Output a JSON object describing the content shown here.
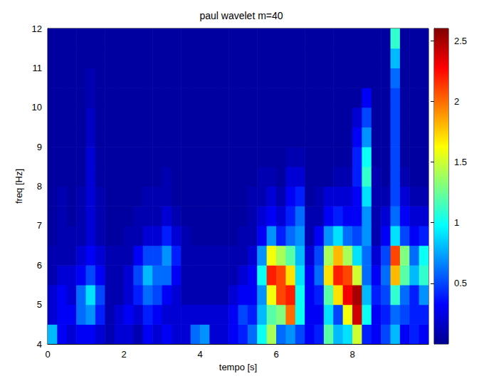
{
  "chart_data": {
    "type": "heatmap",
    "title": "paul wavelet m=40",
    "xlabel": "tempo [s]",
    "ylabel": "freq [Hz]",
    "xlim": [
      0,
      10
    ],
    "xticks": [
      0,
      2,
      4,
      6,
      8
    ],
    "ylim": [
      4,
      12
    ],
    "yticks": [
      4,
      5,
      6,
      7,
      8,
      9,
      10,
      11,
      12
    ],
    "x": [
      0.125,
      0.375,
      0.625,
      0.875,
      1.125,
      1.375,
      1.625,
      1.875,
      2.125,
      2.375,
      2.625,
      2.875,
      3.125,
      3.375,
      3.625,
      3.875,
      4.125,
      4.375,
      4.625,
      4.875,
      5.125,
      5.375,
      5.625,
      5.875,
      6.125,
      6.375,
      6.625,
      6.875,
      7.125,
      7.375,
      7.625,
      7.875,
      8.125,
      8.375,
      8.625,
      8.875,
      9.125,
      9.375,
      9.625,
      9.875
    ],
    "y": [
      4.25,
      4.75,
      5.25,
      5.75,
      6.25,
      6.75,
      7.25,
      7.75,
      8.25,
      8.75,
      9.25,
      9.75,
      10.25,
      10.75,
      11.25,
      11.75
    ],
    "values": [
      [
        0.8,
        0.3,
        0.2,
        0.3,
        0.3,
        0.2,
        0.1,
        0.2,
        0.2,
        0.1,
        0.3,
        0.2,
        0.3,
        0.2,
        0.2,
        0.6,
        0.7,
        0.2,
        0.2,
        0.3,
        0.4,
        0.6,
        1.0,
        1.4,
        0.6,
        0.7,
        0.5,
        0.3,
        0.4,
        1.2,
        0.8,
        0.9,
        1.5,
        0.4,
        0.3,
        0.5,
        0.8,
        0.3,
        0.4,
        0.3
      ],
      [
        0.2,
        0.3,
        0.3,
        0.6,
        0.7,
        0.4,
        0.1,
        0.2,
        0.3,
        0.2,
        0.4,
        0.3,
        0.2,
        0.2,
        0.2,
        0.2,
        0.2,
        0.2,
        0.2,
        0.3,
        0.5,
        0.4,
        0.8,
        1.2,
        1.3,
        2.0,
        1.0,
        0.3,
        0.3,
        0.9,
        0.5,
        1.6,
        2.4,
        1.0,
        0.3,
        0.4,
        0.6,
        0.5,
        0.4,
        0.4
      ],
      [
        0.2,
        0.3,
        0.2,
        0.6,
        0.9,
        0.5,
        0.1,
        0.1,
        0.2,
        0.4,
        0.6,
        0.5,
        0.3,
        0.2,
        0.1,
        0.1,
        0.1,
        0.1,
        0.1,
        0.2,
        0.3,
        0.3,
        0.7,
        1.6,
        2.1,
        2.2,
        1.0,
        0.3,
        0.4,
        1.2,
        1.7,
        2.3,
        2.5,
        0.8,
        0.4,
        0.5,
        1.1,
        0.6,
        0.4,
        0.7
      ],
      [
        0.1,
        0.2,
        0.2,
        0.3,
        0.5,
        0.3,
        0.1,
        0.1,
        0.2,
        0.5,
        0.8,
        0.6,
        0.6,
        0.3,
        0.1,
        0.1,
        0.1,
        0.1,
        0.1,
        0.1,
        0.2,
        0.3,
        1.0,
        2.2,
        2.1,
        1.7,
        0.9,
        0.3,
        0.6,
        1.7,
        2.2,
        2.1,
        1.5,
        0.6,
        0.3,
        0.6,
        1.8,
        1.2,
        0.8,
        1.1
      ],
      [
        0.1,
        0.1,
        0.1,
        0.2,
        0.3,
        0.2,
        0.1,
        0.1,
        0.1,
        0.3,
        0.5,
        0.5,
        0.7,
        0.4,
        0.1,
        0.1,
        0.1,
        0.1,
        0.1,
        0.1,
        0.1,
        0.2,
        0.7,
        1.6,
        1.4,
        1.2,
        0.8,
        0.2,
        0.5,
        1.4,
        1.8,
        1.4,
        0.9,
        0.6,
        0.2,
        0.5,
        2.1,
        1.3,
        0.6,
        1.0
      ],
      [
        0.05,
        0.1,
        0.1,
        0.1,
        0.2,
        0.1,
        0.05,
        0.05,
        0.1,
        0.1,
        0.2,
        0.2,
        0.4,
        0.2,
        0.1,
        0.05,
        0.05,
        0.05,
        0.05,
        0.05,
        0.1,
        0.1,
        0.3,
        0.7,
        0.4,
        0.6,
        0.7,
        0.1,
        0.3,
        0.7,
        0.9,
        0.6,
        0.5,
        0.7,
        0.1,
        0.3,
        0.9,
        0.5,
        0.3,
        0.4
      ],
      [
        0.05,
        0.1,
        0.05,
        0.1,
        0.2,
        0.1,
        0.05,
        0.05,
        0.05,
        0.1,
        0.1,
        0.1,
        0.2,
        0.1,
        0.05,
        0.05,
        0.05,
        0.05,
        0.05,
        0.05,
        0.05,
        0.1,
        0.2,
        0.3,
        0.2,
        0.4,
        0.6,
        0.1,
        0.1,
        0.3,
        0.4,
        0.3,
        0.3,
        0.7,
        0.1,
        0.2,
        0.6,
        0.3,
        0.2,
        0.2
      ],
      [
        0.05,
        0.1,
        0.05,
        0.1,
        0.2,
        0.1,
        0.05,
        0.05,
        0.05,
        0.05,
        0.1,
        0.1,
        0.1,
        0.05,
        0.05,
        0.05,
        0.05,
        0.05,
        0.05,
        0.05,
        0.05,
        0.1,
        0.1,
        0.2,
        0.1,
        0.3,
        0.4,
        0.05,
        0.1,
        0.2,
        0.2,
        0.2,
        0.3,
        0.9,
        0.1,
        0.1,
        0.5,
        0.2,
        0.1,
        0.1
      ],
      [
        0.05,
        0.05,
        0.05,
        0.05,
        0.2,
        0.05,
        0.05,
        0.05,
        0.05,
        0.05,
        0.05,
        0.05,
        0.1,
        0.05,
        0.05,
        0.05,
        0.05,
        0.05,
        0.05,
        0.05,
        0.05,
        0.05,
        0.1,
        0.1,
        0.05,
        0.2,
        0.2,
        0.05,
        0.05,
        0.05,
        0.1,
        0.1,
        0.4,
        1.1,
        0.1,
        0.05,
        0.5,
        0.1,
        0.05,
        0.05
      ],
      [
        0.05,
        0.05,
        0.05,
        0.05,
        0.2,
        0.05,
        0.05,
        0.05,
        0.05,
        0.05,
        0.05,
        0.05,
        0.05,
        0.05,
        0.05,
        0.05,
        0.05,
        0.05,
        0.05,
        0.05,
        0.05,
        0.05,
        0.05,
        0.05,
        0.05,
        0.1,
        0.1,
        0.05,
        0.05,
        0.05,
        0.05,
        0.05,
        0.4,
        1.0,
        0.05,
        0.05,
        0.5,
        0.05,
        0.05,
        0.05
      ],
      [
        0.05,
        0.05,
        0.05,
        0.05,
        0.15,
        0.05,
        0.05,
        0.05,
        0.05,
        0.05,
        0.05,
        0.05,
        0.05,
        0.05,
        0.05,
        0.05,
        0.05,
        0.05,
        0.05,
        0.05,
        0.05,
        0.05,
        0.05,
        0.05,
        0.05,
        0.05,
        0.05,
        0.05,
        0.05,
        0.05,
        0.05,
        0.05,
        0.3,
        0.7,
        0.05,
        0.05,
        0.5,
        0.05,
        0.05,
        0.05
      ],
      [
        0.05,
        0.05,
        0.05,
        0.05,
        0.15,
        0.05,
        0.05,
        0.05,
        0.05,
        0.05,
        0.05,
        0.05,
        0.05,
        0.05,
        0.05,
        0.05,
        0.05,
        0.05,
        0.05,
        0.05,
        0.05,
        0.05,
        0.05,
        0.05,
        0.05,
        0.05,
        0.05,
        0.05,
        0.05,
        0.05,
        0.05,
        0.05,
        0.2,
        0.5,
        0.05,
        0.05,
        0.5,
        0.05,
        0.05,
        0.05
      ],
      [
        0.05,
        0.05,
        0.05,
        0.05,
        0.1,
        0.05,
        0.05,
        0.05,
        0.05,
        0.05,
        0.05,
        0.05,
        0.05,
        0.05,
        0.05,
        0.05,
        0.05,
        0.05,
        0.05,
        0.05,
        0.05,
        0.05,
        0.05,
        0.05,
        0.05,
        0.05,
        0.05,
        0.05,
        0.05,
        0.05,
        0.05,
        0.05,
        0.05,
        0.3,
        0.05,
        0.05,
        0.5,
        0.05,
        0.05,
        0.05
      ],
      [
        0.05,
        0.05,
        0.05,
        0.05,
        0.1,
        0.05,
        0.05,
        0.05,
        0.05,
        0.05,
        0.05,
        0.05,
        0.05,
        0.05,
        0.05,
        0.05,
        0.05,
        0.05,
        0.05,
        0.05,
        0.05,
        0.05,
        0.05,
        0.05,
        0.05,
        0.05,
        0.05,
        0.05,
        0.05,
        0.05,
        0.05,
        0.05,
        0.05,
        0.05,
        0.05,
        0.05,
        0.6,
        0.05,
        0.05,
        0.05
      ],
      [
        0.05,
        0.05,
        0.05,
        0.05,
        0.05,
        0.05,
        0.05,
        0.05,
        0.05,
        0.05,
        0.05,
        0.05,
        0.05,
        0.05,
        0.05,
        0.05,
        0.05,
        0.05,
        0.05,
        0.05,
        0.05,
        0.05,
        0.05,
        0.05,
        0.05,
        0.05,
        0.05,
        0.05,
        0.05,
        0.05,
        0.05,
        0.05,
        0.05,
        0.05,
        0.05,
        0.05,
        0.8,
        0.05,
        0.05,
        0.05
      ],
      [
        0.05,
        0.05,
        0.05,
        0.05,
        0.05,
        0.05,
        0.05,
        0.05,
        0.05,
        0.05,
        0.05,
        0.05,
        0.05,
        0.05,
        0.05,
        0.05,
        0.05,
        0.05,
        0.05,
        0.05,
        0.05,
        0.05,
        0.05,
        0.05,
        0.05,
        0.05,
        0.05,
        0.05,
        0.05,
        0.05,
        0.05,
        0.05,
        0.05,
        0.05,
        0.05,
        0.05,
        1.1,
        0.05,
        0.05,
        0.05
      ]
    ],
    "colorbar": {
      "range": [
        0,
        2.6
      ],
      "ticks": [
        0.5,
        1,
        1.5,
        2,
        2.5
      ]
    }
  }
}
